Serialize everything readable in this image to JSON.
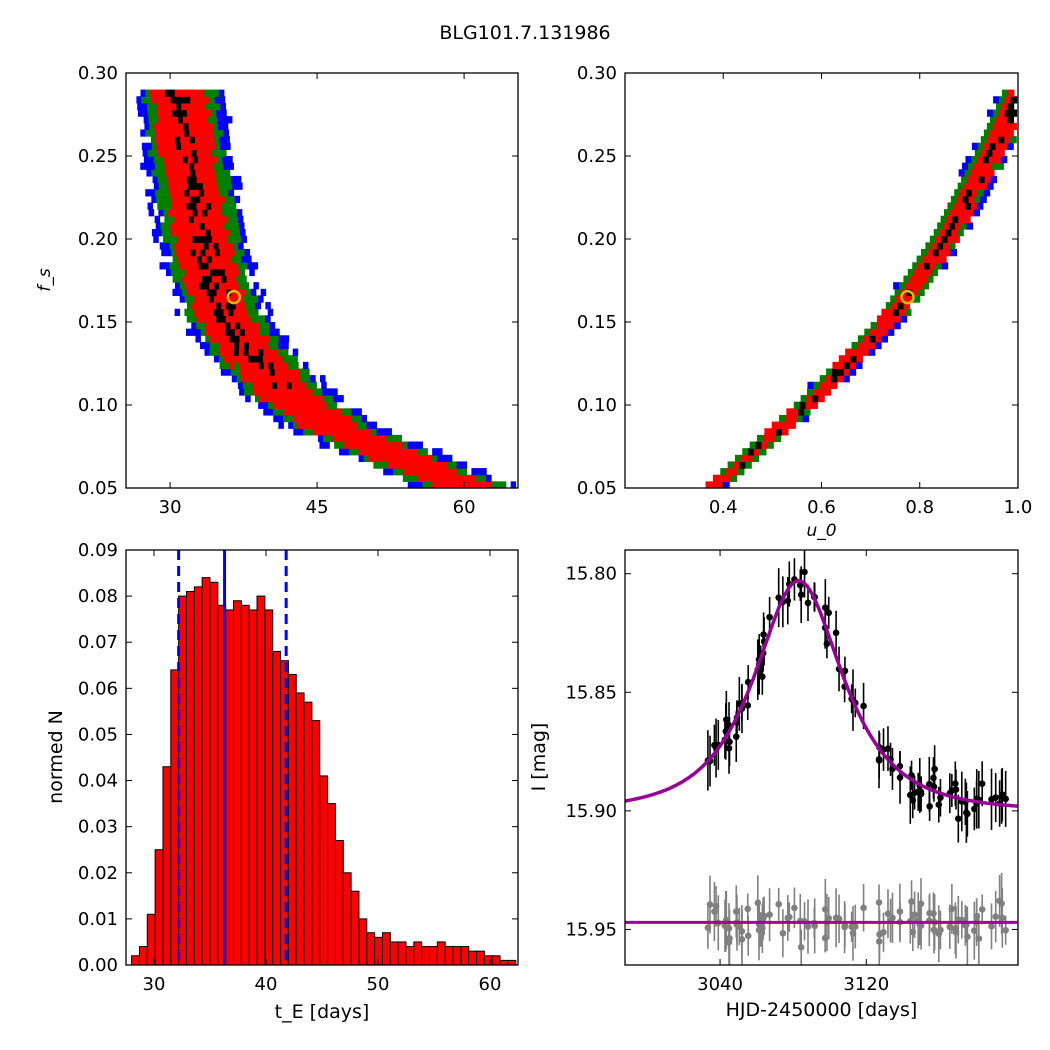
{
  "title": "BLG101.7.131986",
  "chart_data": [
    {
      "type": "heatmap",
      "xlabel": "",
      "ylabel": "f_s",
      "xlim": [
        25.5,
        65.5
      ],
      "ylim": [
        0.05,
        0.3
      ],
      "xticks": [
        "30",
        "45",
        "60"
      ],
      "yticks": [
        "0.05",
        "0.10",
        "0.15",
        "0.20",
        "0.25",
        "0.30"
      ],
      "confidence_colors": [
        "#0000ff",
        "#008000",
        "#ff0000",
        "#000000"
      ],
      "ridge_fs": [
        0.05,
        0.075,
        0.1,
        0.125,
        0.15,
        0.175,
        0.2,
        0.225,
        0.25,
        0.275
      ],
      "ridge_tE": [
        58.5,
        49.0,
        42.5,
        38.5,
        35.5,
        34.0,
        33.0,
        32.3,
        31.5,
        31.0
      ],
      "best_fit": {
        "x": 32.3,
        "y": 0.165
      }
    },
    {
      "type": "heatmap",
      "xlabel": "u_0",
      "ylabel": "",
      "xlim": [
        0.2,
        1.0
      ],
      "ylim": [
        0.05,
        0.3
      ],
      "xticks": [
        "0.4",
        "0.6",
        "0.8",
        "1.0"
      ],
      "yticks": [
        "0.05",
        "0.10",
        "0.15",
        "0.20",
        "0.25",
        "0.30"
      ],
      "ridge_fs": [
        0.05,
        0.1,
        0.15,
        0.2,
        0.25,
        0.3
      ],
      "ridge_u0": [
        0.38,
        0.57,
        0.735,
        0.85,
        0.94,
        1.02
      ],
      "best_fit": {
        "x": 0.775,
        "y": 0.165
      }
    },
    {
      "type": "bar",
      "xlabel": "t_E [days]",
      "ylabel": "normed N",
      "xlim": [
        27.5,
        62.5
      ],
      "ylim": [
        0,
        0.09
      ],
      "xticks": [
        "30",
        "40",
        "50",
        "60"
      ],
      "yticks": [
        "0.00",
        "0.01",
        "0.02",
        "0.03",
        "0.04",
        "0.05",
        "0.06",
        "0.07",
        "0.08",
        "0.09"
      ],
      "bin_start": 28.0,
      "bin_width": 0.5,
      "values": [
        0.002,
        0.004,
        0.011,
        0.025,
        0.043,
        0.064,
        0.08,
        0.081,
        0.082,
        0.084,
        0.083,
        0.078,
        0.077,
        0.079,
        0.078,
        0.077,
        0.08,
        0.077,
        0.068,
        0.066,
        0.063,
        0.059,
        0.057,
        0.053,
        0.041,
        0.035,
        0.027,
        0.02,
        0.016,
        0.01,
        0.007,
        0.006,
        0.007,
        0.005,
        0.005,
        0.004,
        0.005,
        0.004,
        0.004,
        0.005,
        0.004,
        0.004,
        0.004,
        0.003,
        0.003,
        0.002,
        0.002,
        0.001,
        0.001,
        0.001
      ],
      "median": 36.3,
      "interval": [
        32.2,
        41.8
      ],
      "bar_color": "#ff0000",
      "line_color": "#0000ff"
    },
    {
      "type": "line",
      "xlabel": "HJD-2450000 [days]",
      "ylabel": "I [mag]",
      "xlim": [
        2988,
        3203
      ],
      "ylim": [
        15.965,
        15.79
      ],
      "xticks": [
        "3040",
        "3120"
      ],
      "yticks": [
        "15.80",
        "15.85",
        "15.90",
        "15.95"
      ],
      "model": {
        "t0": 3083,
        "tE": 36.3,
        "u0": 0.775,
        "fs": 0.165,
        "baseline": 15.9,
        "color": "#990099"
      },
      "residual_offset": 15.947,
      "data_color": "#000000",
      "residual_color": "#808080"
    }
  ]
}
